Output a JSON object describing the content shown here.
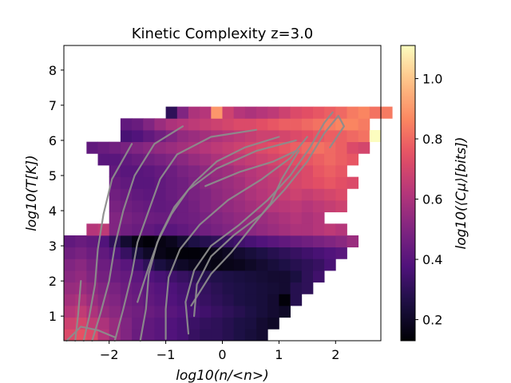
{
  "chart_data": {
    "type": "heatmap",
    "title": "Kinetic Complexity z=3.0",
    "xlabel": "log10(n/<n>)",
    "ylabel": "log10(T[K])",
    "colorbar_label": "log10(⟨Cμ⟩[bits])",
    "xlim": [
      -2.8,
      2.8
    ],
    "ylim": [
      0.3,
      8.7
    ],
    "x_ticks": [
      -2,
      -1,
      0,
      1,
      2
    ],
    "x_tick_labels": [
      "−2",
      "−1",
      "0",
      "1",
      "2"
    ],
    "y_ticks": [
      1,
      2,
      3,
      4,
      5,
      6,
      7,
      8
    ],
    "y_tick_labels": [
      "1",
      "2",
      "3",
      "4",
      "5",
      "6",
      "7",
      "8"
    ],
    "color_range": [
      0.13,
      1.11
    ],
    "colorbar_ticks": [
      0.2,
      0.4,
      0.6,
      0.8,
      1.0
    ],
    "colorbar_tick_labels": [
      "0.2",
      "0.4",
      "0.6",
      "0.8",
      "1.0"
    ],
    "colormap": "magma",
    "contour_color": "#8c8c8c",
    "bin_size": {
      "x": 0.2,
      "y": 0.333
    },
    "y_origin": 0.3,
    "row_starts_bottom_up": [
      -2.8,
      -2.8,
      -2.8,
      -2.8,
      -2.8,
      -2.8,
      -2.8,
      -2.8,
      -2.8,
      -2.4,
      -2.0,
      -2.0,
      -2.0,
      -2.0,
      -2.0,
      -2.2,
      -2.4,
      -1.8,
      -1.8,
      -1.0
    ],
    "row_values_bottom_up": [
      [
        0.72,
        0.75,
        0.72,
        0.62,
        0.55,
        0.5,
        0.44,
        0.42,
        0.4,
        0.38,
        0.36,
        0.32,
        0.3,
        0.3,
        0.28,
        0.26,
        0.24,
        0.22
      ],
      [
        0.68,
        0.7,
        0.65,
        0.6,
        0.55,
        0.5,
        0.45,
        0.42,
        0.4,
        0.38,
        0.36,
        0.33,
        0.31,
        0.3,
        0.28,
        0.26,
        0.25,
        0.22,
        0.2
      ],
      [
        0.62,
        0.65,
        0.6,
        0.55,
        0.52,
        0.48,
        0.46,
        0.44,
        0.42,
        0.4,
        0.38,
        0.36,
        0.34,
        0.32,
        0.3,
        0.28,
        0.26,
        0.24,
        0.22,
        0.2
      ],
      [
        0.58,
        0.6,
        0.56,
        0.52,
        0.5,
        0.46,
        0.44,
        0.42,
        0.4,
        0.38,
        0.36,
        0.34,
        0.32,
        0.3,
        0.28,
        0.26,
        0.25,
        0.24,
        0.22,
        0.14,
        0.28
      ],
      [
        0.55,
        0.56,
        0.53,
        0.5,
        0.48,
        0.45,
        0.43,
        0.41,
        0.39,
        0.37,
        0.35,
        0.33,
        0.31,
        0.29,
        0.27,
        0.26,
        0.25,
        0.24,
        0.23,
        0.22,
        0.28,
        0.3
      ],
      [
        0.52,
        0.54,
        0.5,
        0.47,
        0.45,
        0.43,
        0.41,
        0.38,
        0.36,
        0.34,
        0.32,
        0.3,
        0.28,
        0.27,
        0.26,
        0.25,
        0.24,
        0.23,
        0.22,
        0.22,
        0.25,
        0.3,
        0.34
      ],
      [
        0.5,
        0.52,
        0.48,
        0.45,
        0.43,
        0.4,
        0.35,
        0.3,
        0.25,
        0.22,
        0.2,
        0.18,
        0.17,
        0.16,
        0.17,
        0.18,
        0.2,
        0.22,
        0.24,
        0.26,
        0.28,
        0.3,
        0.32,
        0.36
      ],
      [
        0.46,
        0.48,
        0.45,
        0.42,
        0.38,
        0.32,
        0.25,
        0.2,
        0.17,
        0.15,
        0.14,
        0.14,
        0.15,
        0.17,
        0.19,
        0.22,
        0.24,
        0.26,
        0.28,
        0.3,
        0.32,
        0.34,
        0.36,
        0.38,
        0.4
      ],
      [
        0.42,
        0.44,
        0.42,
        0.38,
        0.3,
        0.22,
        0.16,
        0.14,
        0.16,
        0.18,
        0.22,
        0.26,
        0.28,
        0.3,
        0.32,
        0.34,
        0.36,
        0.38,
        0.4,
        0.42,
        0.44,
        0.46,
        0.48,
        0.5,
        0.52,
        0.56
      ],
      [
        0.62,
        0.64,
        0.5,
        0.46,
        0.44,
        0.42,
        0.4,
        0.4,
        0.42,
        0.44,
        0.46,
        0.48,
        0.5,
        0.52,
        0.52,
        0.54,
        0.56,
        0.58,
        0.6,
        0.6,
        0.62,
        0.64,
        0.62
      ],
      [
        0.5,
        0.48,
        0.46,
        0.45,
        0.44,
        0.44,
        0.45,
        0.46,
        0.48,
        0.5,
        0.52,
        0.54,
        0.55,
        0.56,
        0.58,
        0.6,
        0.62,
        0.6,
        0.62
      ],
      [
        0.48,
        0.46,
        0.44,
        0.43,
        0.42,
        0.43,
        0.45,
        0.47,
        0.5,
        0.52,
        0.54,
        0.56,
        0.58,
        0.6,
        0.62,
        0.63,
        0.64,
        0.62,
        0.64,
        0.66,
        0.68
      ],
      [
        0.46,
        0.44,
        0.42,
        0.41,
        0.42,
        0.44,
        0.46,
        0.48,
        0.5,
        0.53,
        0.55,
        0.57,
        0.6,
        0.62,
        0.64,
        0.66,
        0.68,
        0.66,
        0.68,
        0.7,
        0.72
      ],
      [
        0.44,
        0.42,
        0.4,
        0.4,
        0.42,
        0.44,
        0.46,
        0.49,
        0.52,
        0.54,
        0.56,
        0.58,
        0.61,
        0.63,
        0.65,
        0.68,
        0.7,
        0.72,
        0.74,
        0.76,
        0.74,
        0.72
      ],
      [
        0.42,
        0.4,
        0.4,
        0.41,
        0.43,
        0.45,
        0.48,
        0.5,
        0.53,
        0.55,
        0.57,
        0.6,
        0.62,
        0.64,
        0.66,
        0.68,
        0.7,
        0.72,
        0.76,
        0.78,
        0.76
      ],
      [
        0.4,
        0.4,
        0.42,
        0.44,
        0.46,
        0.48,
        0.5,
        0.52,
        0.55,
        0.57,
        0.6,
        0.62,
        0.64,
        0.66,
        0.68,
        0.7,
        0.72,
        0.74,
        0.76,
        0.78,
        0.8,
        0.78,
        0.76
      ],
      [
        0.42,
        0.44,
        0.46,
        0.48,
        0.5,
        0.52,
        0.54,
        0.56,
        0.58,
        0.6,
        0.62,
        0.64,
        0.66,
        0.68,
        0.7,
        0.72,
        0.74,
        0.76,
        0.78,
        0.8,
        0.82,
        0.8,
        0.78,
        0.72,
        0.7
      ],
      [
        0.36,
        0.38,
        0.42,
        0.46,
        0.5,
        0.54,
        0.56,
        0.58,
        0.6,
        0.62,
        0.64,
        0.66,
        0.68,
        0.68,
        0.7,
        0.72,
        0.74,
        0.76,
        0.78,
        0.78,
        0.8,
        0.82,
        1.11
      ],
      [
        0.42,
        0.44,
        0.5,
        0.56,
        0.6,
        0.62,
        0.64,
        0.66,
        0.68,
        0.7,
        0.72,
        0.72,
        0.74,
        0.76,
        0.78,
        0.78,
        0.8,
        0.82,
        0.84,
        0.86,
        0.86,
        0.84
      ],
      [
        0.3,
        0.5,
        0.6,
        0.62,
        0.9,
        0.68,
        0.62,
        0.6,
        0.62,
        0.64,
        0.68,
        0.72,
        0.74,
        0.76,
        0.78,
        0.8,
        0.84,
        0.86,
        0.82,
        0.84
      ]
    ],
    "contours": [
      [
        [
          -2.3,
          0.3
        ],
        [
          -2.15,
          1.1
        ],
        [
          -2.0,
          2.0
        ],
        [
          -1.9,
          3.0
        ],
        [
          -1.75,
          4.0
        ],
        [
          -1.55,
          5.0
        ],
        [
          -1.2,
          5.9
        ],
        [
          -0.7,
          6.4
        ]
      ],
      [
        [
          -1.9,
          0.3
        ],
        [
          -1.75,
          1.2
        ],
        [
          -1.6,
          2.2
        ],
        [
          -1.5,
          3.1
        ],
        [
          -1.3,
          4.0
        ],
        [
          -1.1,
          4.9
        ],
        [
          -0.8,
          5.6
        ],
        [
          -0.2,
          6.1
        ],
        [
          0.6,
          6.3
        ]
      ],
      [
        [
          -1.45,
          0.3
        ],
        [
          -1.35,
          1.2
        ],
        [
          -1.3,
          2.2
        ],
        [
          -1.15,
          3.1
        ],
        [
          -0.9,
          3.9
        ],
        [
          -0.6,
          4.6
        ],
        [
          -0.1,
          5.2
        ],
        [
          0.6,
          5.7
        ],
        [
          1.3,
          6.0
        ]
      ],
      [
        [
          -1.0,
          0.35
        ],
        [
          -1.0,
          1.2
        ],
        [
          -0.95,
          2.1
        ],
        [
          -0.75,
          2.9
        ],
        [
          -0.4,
          3.6
        ],
        [
          0.1,
          4.3
        ],
        [
          0.7,
          4.9
        ],
        [
          1.2,
          5.5
        ],
        [
          1.5,
          6.1
        ]
      ],
      [
        [
          -0.6,
          0.5
        ],
        [
          -0.65,
          1.4
        ],
        [
          -0.5,
          2.3
        ],
        [
          -0.2,
          3.0
        ],
        [
          0.3,
          3.6
        ],
        [
          0.8,
          4.3
        ],
        [
          1.2,
          5.0
        ],
        [
          1.55,
          5.8
        ],
        [
          1.8,
          6.5
        ],
        [
          1.95,
          6.8
        ]
      ],
      [
        [
          -0.5,
          1.0
        ],
        [
          -0.45,
          1.9
        ],
        [
          -0.2,
          2.7
        ],
        [
          0.2,
          3.3
        ],
        [
          0.7,
          3.9
        ],
        [
          1.1,
          4.6
        ],
        [
          1.5,
          5.4
        ],
        [
          1.8,
          6.2
        ],
        [
          2.05,
          6.7
        ],
        [
          2.15,
          6.4
        ],
        [
          1.9,
          5.8
        ]
      ],
      [
        [
          -0.55,
          1.3
        ],
        [
          -0.2,
          2.2
        ],
        [
          0.15,
          2.8
        ],
        [
          0.5,
          3.5
        ],
        [
          0.85,
          4.2
        ],
        [
          1.05,
          4.9
        ],
        [
          1.35,
          5.7
        ]
      ],
      [
        [
          -2.45,
          0.3
        ],
        [
          -2.35,
          1.0
        ],
        [
          -2.25,
          1.9
        ],
        [
          -2.2,
          2.9
        ],
        [
          -2.1,
          3.9
        ],
        [
          -1.95,
          4.9
        ],
        [
          -1.6,
          5.9
        ]
      ],
      [
        [
          -2.6,
          0.3
        ],
        [
          -2.55,
          1.0
        ],
        [
          -2.5,
          2.0
        ]
      ],
      [
        [
          -2.75,
          0.3
        ],
        [
          -2.5,
          0.7
        ],
        [
          -2.2,
          0.6
        ],
        [
          -1.9,
          0.4
        ]
      ],
      [
        [
          -1.5,
          1.4
        ],
        [
          -1.3,
          2.4
        ],
        [
          -1.1,
          3.3
        ],
        [
          -0.85,
          4.1
        ],
        [
          -0.5,
          4.8
        ],
        [
          -0.1,
          5.4
        ],
        [
          0.4,
          5.8
        ],
        [
          1.0,
          6.1
        ]
      ],
      [
        [
          -0.3,
          4.7
        ],
        [
          0.3,
          5.1
        ],
        [
          0.9,
          5.4
        ],
        [
          1.3,
          5.7
        ]
      ]
    ]
  }
}
